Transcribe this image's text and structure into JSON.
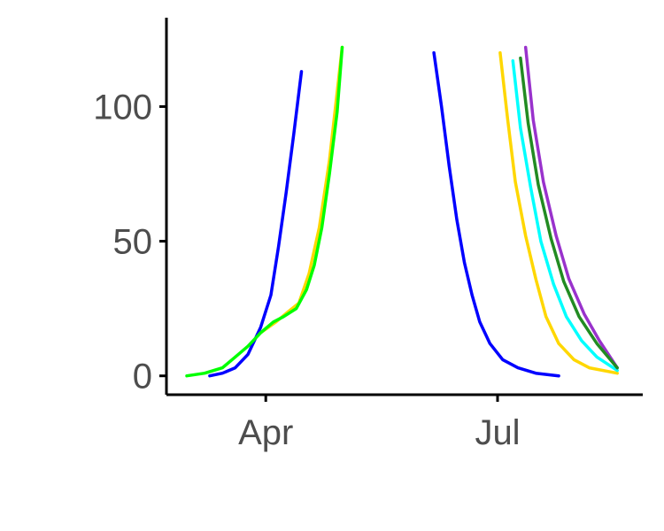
{
  "chart_data": {
    "type": "line",
    "title": "",
    "xlabel": "",
    "ylabel": "",
    "x_axis": {
      "type": "date",
      "range": [
        "2020-02-22",
        "2020-08-27"
      ],
      "ticks": [
        {
          "date": "2020-04-01",
          "label": "Apr"
        },
        {
          "date": "2020-07-01",
          "label": "Jul"
        }
      ]
    },
    "y_axis": {
      "range": [
        -7,
        133
      ],
      "ticks": [
        0,
        50,
        100
      ]
    },
    "grid": false,
    "legend": "none",
    "series": [
      {
        "color": "#0000ff",
        "segments": [
          [
            [
              "2020-03-10",
              0
            ],
            [
              "2020-03-15",
              1
            ],
            [
              "2020-03-20",
              3
            ],
            [
              "2020-03-25",
              8
            ],
            [
              "2020-03-30",
              18
            ],
            [
              "2020-04-03",
              30
            ],
            [
              "2020-04-06",
              48
            ],
            [
              "2020-04-09",
              68
            ],
            [
              "2020-04-12",
              90
            ],
            [
              "2020-04-15",
              113
            ]
          ],
          [
            [
              "2020-06-06",
              120
            ],
            [
              "2020-06-09",
              100
            ],
            [
              "2020-06-12",
              78
            ],
            [
              "2020-06-15",
              58
            ],
            [
              "2020-06-18",
              42
            ],
            [
              "2020-06-21",
              30
            ],
            [
              "2020-06-24",
              20
            ],
            [
              "2020-06-28",
              12
            ],
            [
              "2020-07-03",
              6
            ],
            [
              "2020-07-09",
              3
            ],
            [
              "2020-07-16",
              1
            ],
            [
              "2020-07-25",
              0
            ]
          ]
        ]
      },
      {
        "color": "#ffd700",
        "segments": [
          [
            [
              "2020-03-30",
              16
            ],
            [
              "2020-04-05",
              20
            ],
            [
              "2020-04-10",
              24
            ],
            [
              "2020-04-14",
              27
            ],
            [
              "2020-04-18",
              38
            ],
            [
              "2020-04-22",
              55
            ],
            [
              "2020-04-26",
              80
            ],
            [
              "2020-05-01",
              122
            ]
          ],
          [
            [
              "2020-07-02",
              120
            ],
            [
              "2020-07-05",
              95
            ],
            [
              "2020-07-08",
              72
            ],
            [
              "2020-07-12",
              52
            ],
            [
              "2020-07-16",
              36
            ],
            [
              "2020-07-20",
              22
            ],
            [
              "2020-07-25",
              12
            ],
            [
              "2020-07-31",
              6
            ],
            [
              "2020-08-06",
              3
            ],
            [
              "2020-08-17",
              1
            ]
          ]
        ]
      },
      {
        "color": "#00ffff",
        "segments": [
          [
            [
              "2020-07-07",
              117
            ],
            [
              "2020-07-10",
              92
            ],
            [
              "2020-07-14",
              70
            ],
            [
              "2020-07-18",
              50
            ],
            [
              "2020-07-23",
              34
            ],
            [
              "2020-07-28",
              22
            ],
            [
              "2020-08-03",
              13
            ],
            [
              "2020-08-09",
              7
            ],
            [
              "2020-08-17",
              2
            ]
          ]
        ]
      },
      {
        "color": "#9932cc",
        "segments": [
          [
            [
              "2020-07-12",
              122
            ],
            [
              "2020-07-15",
              95
            ],
            [
              "2020-07-19",
              72
            ],
            [
              "2020-07-24",
              52
            ],
            [
              "2020-07-29",
              36
            ],
            [
              "2020-08-04",
              23
            ],
            [
              "2020-08-10",
              13
            ],
            [
              "2020-08-17",
              3
            ]
          ]
        ]
      },
      {
        "color": "#228b22",
        "segments": [
          [
            [
              "2020-07-10",
              118
            ],
            [
              "2020-07-13",
              94
            ],
            [
              "2020-07-17",
              71
            ],
            [
              "2020-07-22",
              51
            ],
            [
              "2020-07-27",
              35
            ],
            [
              "2020-08-02",
              22
            ],
            [
              "2020-08-09",
              12
            ],
            [
              "2020-08-17",
              3
            ]
          ]
        ]
      },
      {
        "color": "#00ff00",
        "segments": [
          [
            [
              "2020-03-01",
              0
            ],
            [
              "2020-03-08",
              1
            ],
            [
              "2020-03-15",
              3
            ],
            [
              "2020-03-20",
              7
            ],
            [
              "2020-03-25",
              11
            ],
            [
              "2020-03-30",
              16
            ],
            [
              "2020-04-04",
              20
            ],
            [
              "2020-04-08",
              22
            ],
            [
              "2020-04-13",
              25
            ],
            [
              "2020-04-17",
              32
            ],
            [
              "2020-04-20",
              41
            ],
            [
              "2020-04-23",
              55
            ],
            [
              "2020-04-26",
              75
            ],
            [
              "2020-04-29",
              98
            ],
            [
              "2020-05-01",
              122
            ]
          ]
        ]
      }
    ]
  }
}
